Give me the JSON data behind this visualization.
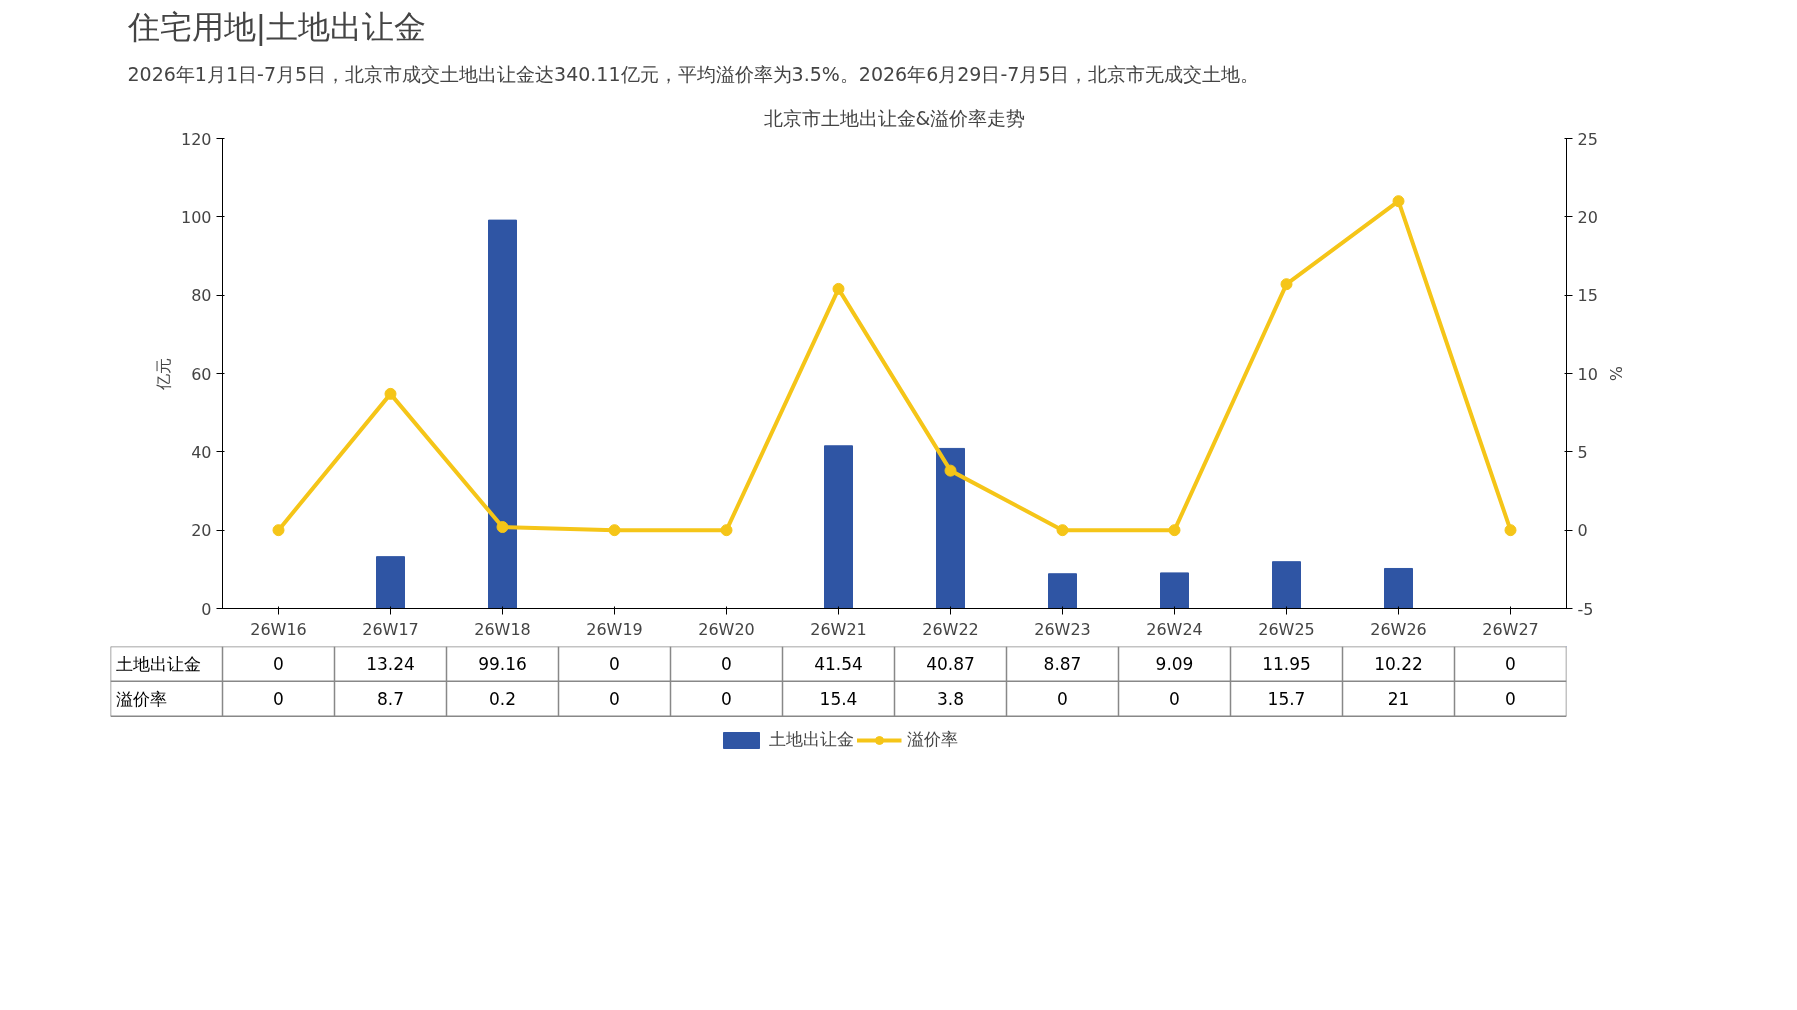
{
  "chart_data": {
    "type": "bar",
    "title": "住宅用地|土地出让金",
    "subtitle": "2026年1月1日-7月5日，北京市成交土地出让金达340.11亿元，平均溢价率为3.5%。2026年6月29日-7月5日，北京市无成交土地。",
    "annotations": [
      "北京市土地出让金&溢价率走势"
    ],
    "categories": [
      "26W16",
      "26W17",
      "26W18",
      "26W19",
      "26W20",
      "26W21",
      "26W22",
      "26W23",
      "26W24",
      "26W25",
      "26W26",
      "26W27"
    ],
    "series": [
      {
        "name": "土地出让金",
        "color": "#2f55a4",
        "values": [
          0,
          13.24,
          99.16,
          0,
          0,
          41.54,
          40.87,
          8.87,
          9.09,
          11.95,
          10.22,
          0
        ]
      },
      {
        "name": "溢价率",
        "type": "line",
        "axis": "y2",
        "color": "#f5c518",
        "marker": "circle",
        "values": [
          0,
          8.7,
          0.2,
          0,
          0,
          15.4,
          3.8,
          0,
          0,
          15.7,
          21,
          0
        ]
      }
    ],
    "ylabel": "亿元",
    "y2label": "%",
    "ylim": [
      0,
      120
    ],
    "yticks": [
      0,
      20,
      40,
      60,
      80,
      100,
      120
    ],
    "y2lim": [
      -5,
      25
    ],
    "y2ticks": [
      -5,
      0,
      5,
      10,
      15,
      20,
      25
    ],
    "grid": false,
    "legend": "bottom",
    "data_labels": true
  }
}
